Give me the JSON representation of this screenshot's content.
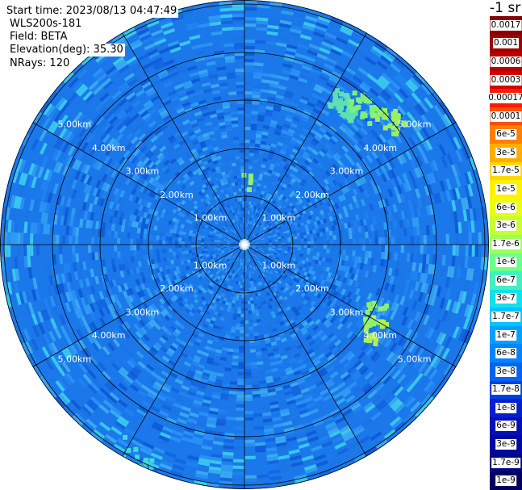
{
  "info": {
    "start_time": "Start time: 2023/08/13 04:47:49",
    "device": "WLS200s-181",
    "field": "Field: BETA",
    "elevation": "Elevation(deg): 35.30",
    "nrays": "NRays: 120"
  },
  "unit_label": "-1 sr",
  "range_ring_labels": [
    "1.00km",
    "2.00km",
    "3.00km",
    "4.00km",
    "5.00km"
  ],
  "colorbar": {
    "labels": [
      "0.0017",
      "0.001",
      "0.0006",
      "0.0003",
      "0.00017",
      "0.0001",
      "6e-5",
      "3e-5",
      "1.7e-5",
      "1e-5",
      "6e-6",
      "3e-6",
      "1.7e-6",
      "1e-6",
      "6e-7",
      "3e-7",
      "1.7e-7",
      "1e-7",
      "6e-8",
      "3e-8",
      "1.7e-8",
      "1e-8",
      "6e-9",
      "3e-9",
      "1.7e-9",
      "1e-9"
    ],
    "colors": [
      "#8a0000",
      "#a00000",
      "#b80000",
      "#d40000",
      "#ff1a00",
      "#ff4e00",
      "#ff8000",
      "#ffae00",
      "#ffd800",
      "#fff200",
      "#e8ff10",
      "#c8ff30",
      "#9dff5a",
      "#6cff8a",
      "#40f0c0",
      "#10e0f0",
      "#00c4ff",
      "#00a0ff",
      "#0084ff",
      "#0064f0",
      "#0040e0",
      "#0020d0",
      "#0010b8",
      "#0008a0",
      "#000888",
      "#000060"
    ]
  }
}
